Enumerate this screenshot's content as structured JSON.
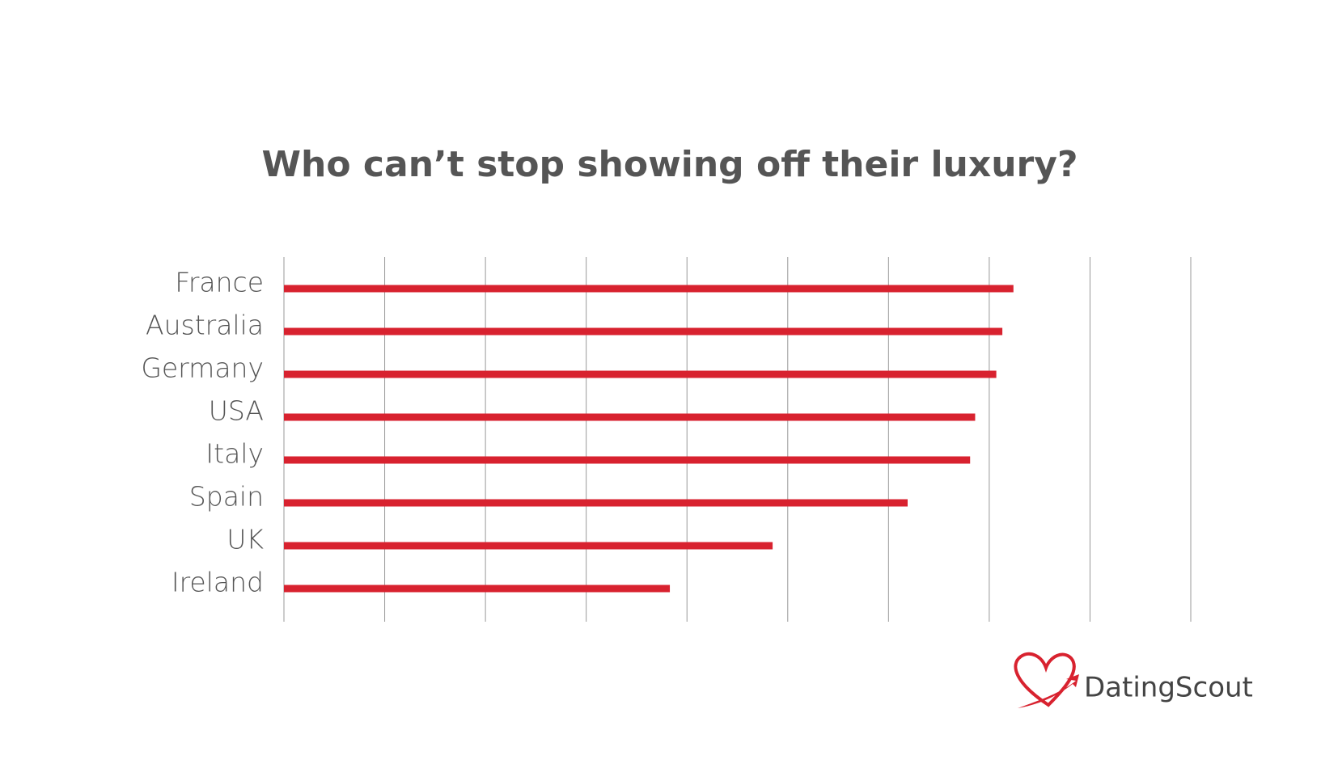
{
  "chart_data": {
    "type": "hbar",
    "title": "Who can’t stop showing off their luxury?",
    "categories": [
      "France",
      "Australia",
      "Germany",
      "USA",
      "Italy",
      "Spain",
      "UK",
      "Ireland"
    ],
    "values": [
      7.24,
      7.13,
      7.07,
      6.86,
      6.81,
      6.19,
      4.85,
      3.83
    ],
    "color": "#d8222f",
    "xlim": [
      0,
      9
    ],
    "xticks": [
      0,
      1,
      2,
      3,
      4,
      5,
      6,
      7,
      8,
      9
    ],
    "grid": true,
    "brand": "DatingScout"
  }
}
